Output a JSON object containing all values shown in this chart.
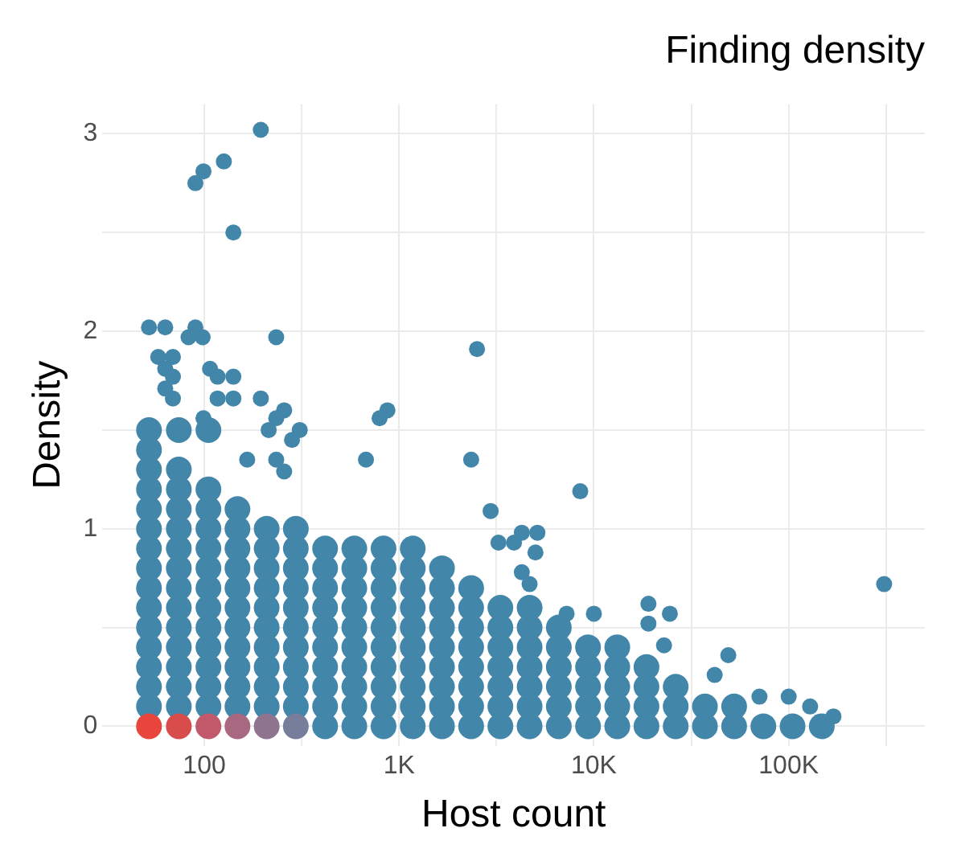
{
  "chart_data": {
    "type": "scatter",
    "title": "Finding density",
    "xlabel": "Host count",
    "ylabel": "Density",
    "log": "x",
    "grid": true,
    "marker": "circle",
    "xlim": [
      30,
      500000
    ],
    "xticks": [
      100,
      {
        "value": 316,
        "label": null
      },
      {
        "value": 1000,
        "label": "1K"
      },
      {
        "value": 3162,
        "label": null
      },
      {
        "value": 10000,
        "label": "10K"
      },
      {
        "value": 31623,
        "label": null
      },
      {
        "value": 100000,
        "label": "100K"
      },
      {
        "value": 316228,
        "label": null
      }
    ],
    "ylim": [
      -0.1,
      3.15
    ],
    "yticks": [
      0,
      {
        "value": 0.5,
        "label": null
      },
      1,
      {
        "value": 1.5,
        "label": null
      },
      2,
      {
        "value": 2.5,
        "label": null
      },
      3
    ],
    "series": [
      {
        "colors": [
          "#e8453c",
          "#d84c4c",
          "#c2596a",
          "#a86880",
          "#8f7490",
          "#767e9c"
        ],
        "x": [
          52,
          74,
          105,
          148,
          209,
          295
        ],
        "values": [
          0,
          0,
          0,
          0,
          0,
          0
        ]
      },
      {
        "color": "#4286aa",
        "x": [
          417,
          589,
          832,
          1175,
          1660,
          2344,
          3311,
          4677,
          6607,
          9333,
          13183,
          18621,
          26303,
          37154,
          52481,
          74131,
          104713,
          147911,
          52,
          74,
          105,
          148,
          209,
          295,
          417,
          589,
          832,
          1175,
          1660,
          2344,
          3311,
          4677,
          6607,
          9333,
          13183,
          18621,
          26303,
          37154,
          52481,
          52,
          74,
          105,
          148,
          209,
          295,
          417,
          589,
          832,
          1175,
          1660,
          2344,
          3311,
          4677,
          6607,
          9333,
          13183,
          18621,
          26303,
          52,
          74,
          105,
          148,
          209,
          295,
          417,
          589,
          832,
          1175,
          1660,
          2344,
          3311,
          4677,
          6607,
          9333,
          13183,
          18621,
          52,
          74,
          105,
          148,
          209,
          295,
          417,
          589,
          832,
          1175,
          1660,
          2344,
          3311,
          4677,
          6607,
          9333,
          13183,
          52,
          74,
          105,
          148,
          209,
          295,
          417,
          589,
          832,
          1175,
          1660,
          2344,
          3311,
          4677,
          6607,
          52,
          74,
          105,
          148,
          209,
          295,
          417,
          589,
          832,
          1175,
          1660,
          2344,
          3311,
          4677,
          52,
          74,
          105,
          148,
          209,
          295,
          417,
          589,
          832,
          1175,
          1660,
          2344,
          52,
          74,
          105,
          148,
          209,
          295,
          417,
          589,
          832,
          1175,
          1660,
          52,
          74,
          105,
          148,
          209,
          295,
          417,
          589,
          832,
          1175,
          52,
          74,
          105,
          148,
          209,
          295,
          52,
          74,
          105,
          148,
          52,
          74,
          105,
          52,
          74,
          52,
          52,
          74,
          105
        ],
        "values": [
          0,
          0,
          0,
          0,
          0,
          0,
          0,
          0,
          0,
          0,
          0,
          0,
          0,
          0,
          0,
          0,
          0,
          0,
          0.1,
          0.1,
          0.1,
          0.1,
          0.1,
          0.1,
          0.1,
          0.1,
          0.1,
          0.1,
          0.1,
          0.1,
          0.1,
          0.1,
          0.1,
          0.1,
          0.1,
          0.1,
          0.1,
          0.1,
          0.1,
          0.2,
          0.2,
          0.2,
          0.2,
          0.2,
          0.2,
          0.2,
          0.2,
          0.2,
          0.2,
          0.2,
          0.2,
          0.2,
          0.2,
          0.2,
          0.2,
          0.2,
          0.2,
          0.2,
          0.3,
          0.3,
          0.3,
          0.3,
          0.3,
          0.3,
          0.3,
          0.3,
          0.3,
          0.3,
          0.3,
          0.3,
          0.3,
          0.3,
          0.3,
          0.3,
          0.3,
          0.3,
          0.4,
          0.4,
          0.4,
          0.4,
          0.4,
          0.4,
          0.4,
          0.4,
          0.4,
          0.4,
          0.4,
          0.4,
          0.4,
          0.4,
          0.4,
          0.4,
          0.4,
          0.5,
          0.5,
          0.5,
          0.5,
          0.5,
          0.5,
          0.5,
          0.5,
          0.5,
          0.5,
          0.5,
          0.5,
          0.5,
          0.5,
          0.5,
          0.6,
          0.6,
          0.6,
          0.6,
          0.6,
          0.6,
          0.6,
          0.6,
          0.6,
          0.6,
          0.6,
          0.6,
          0.6,
          0.6,
          0.7,
          0.7,
          0.7,
          0.7,
          0.7,
          0.7,
          0.7,
          0.7,
          0.7,
          0.7,
          0.7,
          0.7,
          0.8,
          0.8,
          0.8,
          0.8,
          0.8,
          0.8,
          0.8,
          0.8,
          0.8,
          0.8,
          0.8,
          0.9,
          0.9,
          0.9,
          0.9,
          0.9,
          0.9,
          0.9,
          0.9,
          0.9,
          0.9,
          1,
          1,
          1,
          1,
          1,
          1,
          1.1,
          1.1,
          1.1,
          1.1,
          1.2,
          1.2,
          1.2,
          1.3,
          1.3,
          1.4,
          1.5,
          1.5,
          1.5
        ]
      },
      {
        "color": "#4286aa",
        "x": [
          195,
          126,
          99,
          90,
          141,
          52,
          63,
          90,
          83,
          98,
          234,
          58,
          69,
          63,
          69,
          63,
          69,
          107,
          117,
          141,
          117,
          141,
          195,
          257,
          234,
          99,
          214,
          309,
          282,
          166,
          234,
          257,
          871,
          794,
          676,
          2512,
          2344,
          2951,
          8511,
          309030,
          5012,
          4266,
          5129,
          3236,
          3890,
          4266,
          4677,
          19055,
          19055,
          24547,
          22909,
          48978,
          41687,
          70795,
          100000,
          128825,
          169824,
          10000,
          7244
        ],
        "values": [
          3.02,
          2.86,
          2.81,
          2.75,
          2.5,
          2.02,
          2.02,
          2.02,
          1.97,
          1.97,
          1.97,
          1.87,
          1.87,
          1.81,
          1.77,
          1.71,
          1.66,
          1.81,
          1.77,
          1.77,
          1.66,
          1.66,
          1.66,
          1.6,
          1.56,
          1.56,
          1.5,
          1.5,
          1.45,
          1.35,
          1.35,
          1.29,
          1.6,
          1.56,
          1.35,
          1.91,
          1.35,
          1.09,
          1.19,
          0.72,
          0.88,
          0.98,
          0.98,
          0.93,
          0.93,
          0.78,
          0.72,
          0.62,
          0.52,
          0.57,
          0.41,
          0.36,
          0.26,
          0.15,
          0.15,
          0.1,
          0.05,
          0.57,
          0.57
        ]
      }
    ]
  }
}
